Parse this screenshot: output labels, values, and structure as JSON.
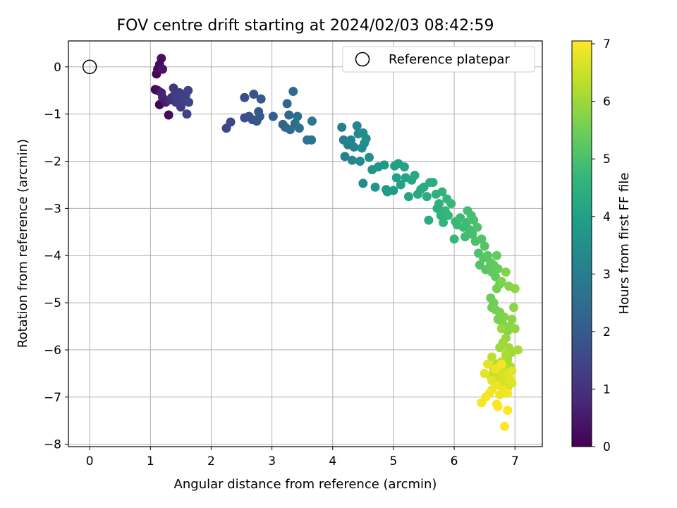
{
  "chart_data": {
    "type": "scatter",
    "title": "FOV centre drift starting at 2024/02/03 08:42:59",
    "xlabel": "Angular distance from reference (arcmin)",
    "ylabel": "Rotation from reference (arcmin)",
    "xlim": [
      -0.35,
      7.45
    ],
    "ylim": [
      -8.05,
      0.55
    ],
    "xticks": [
      0,
      1,
      2,
      3,
      4,
      5,
      6,
      7
    ],
    "yticks": [
      0,
      -1,
      -2,
      -3,
      -4,
      -5,
      -6,
      -7,
      -8
    ],
    "xtick_labels": [
      "0",
      "1",
      "2",
      "3",
      "4",
      "5",
      "6",
      "7"
    ],
    "ytick_labels": [
      "0",
      "−1",
      "−2",
      "−3",
      "−4",
      "−5",
      "−6",
      "−7",
      "−8"
    ],
    "grid": true,
    "legend": {
      "position": "top-right",
      "label": "Reference platepar"
    },
    "reference_point": {
      "x": 0,
      "y": 0
    },
    "colorbar": {
      "label": "Hours from first FF file",
      "colormap": "viridis",
      "range": [
        0,
        7.05
      ],
      "ticks": [
        0,
        1,
        2,
        3,
        4,
        5,
        6,
        7
      ],
      "tick_labels": [
        "0",
        "1",
        "2",
        "3",
        "4",
        "5",
        "6",
        "7"
      ]
    },
    "series": [
      {
        "points": [
          {
            "x": 1.1,
            "y": -0.15,
            "c": 0.05
          },
          {
            "x": 1.12,
            "y": -0.05,
            "c": 0.1
          },
          {
            "x": 1.18,
            "y": 0.18,
            "c": 0.3
          },
          {
            "x": 1.15,
            "y": 0.05,
            "c": 0.2
          },
          {
            "x": 1.2,
            "y": -0.05,
            "c": 0.4
          },
          {
            "x": 1.08,
            "y": -0.48,
            "c": 0.15
          },
          {
            "x": 1.12,
            "y": -0.5,
            "c": 0.25
          },
          {
            "x": 1.15,
            "y": -0.8,
            "c": 0.1
          },
          {
            "x": 1.18,
            "y": -0.55,
            "c": 0.6
          },
          {
            "x": 1.2,
            "y": -0.65,
            "c": 0.7
          },
          {
            "x": 1.25,
            "y": -0.75,
            "c": 0.6
          },
          {
            "x": 1.3,
            "y": -1.02,
            "c": 0.2
          },
          {
            "x": 1.32,
            "y": -0.7,
            "c": 0.9
          },
          {
            "x": 1.35,
            "y": -0.65,
            "c": 1.0
          },
          {
            "x": 1.38,
            "y": -0.45,
            "c": 1.1
          },
          {
            "x": 1.4,
            "y": -0.6,
            "c": 1.2
          },
          {
            "x": 1.42,
            "y": -0.75,
            "c": 1.15
          },
          {
            "x": 1.45,
            "y": -0.7,
            "c": 1.3
          },
          {
            "x": 1.48,
            "y": -0.55,
            "c": 1.25
          },
          {
            "x": 1.5,
            "y": -0.85,
            "c": 1.2
          },
          {
            "x": 1.52,
            "y": -0.65,
            "c": 1.3
          },
          {
            "x": 1.55,
            "y": -0.72,
            "c": 1.4
          },
          {
            "x": 1.58,
            "y": -0.6,
            "c": 1.35
          },
          {
            "x": 1.6,
            "y": -1.0,
            "c": 1.4
          },
          {
            "x": 1.62,
            "y": -0.5,
            "c": 1.4
          },
          {
            "x": 1.63,
            "y": -0.75,
            "c": 1.45
          },
          {
            "x": 2.25,
            "y": -1.3,
            "c": 1.5
          },
          {
            "x": 2.32,
            "y": -1.17,
            "c": 1.55
          },
          {
            "x": 2.55,
            "y": -0.65,
            "c": 1.7
          },
          {
            "x": 2.55,
            "y": -1.08,
            "c": 1.65
          },
          {
            "x": 2.62,
            "y": -1.05,
            "c": 1.75
          },
          {
            "x": 2.68,
            "y": -1.12,
            "c": 1.8
          },
          {
            "x": 2.7,
            "y": -0.58,
            "c": 1.85
          },
          {
            "x": 2.75,
            "y": -1.15,
            "c": 1.9
          },
          {
            "x": 2.78,
            "y": -0.95,
            "c": 1.95
          },
          {
            "x": 2.8,
            "y": -1.05,
            "c": 2.0
          },
          {
            "x": 2.82,
            "y": -0.68,
            "c": 2.0
          },
          {
            "x": 3.02,
            "y": -1.05,
            "c": 2.1
          },
          {
            "x": 3.18,
            "y": -1.22,
            "c": 2.2
          },
          {
            "x": 3.22,
            "y": -1.28,
            "c": 2.25
          },
          {
            "x": 3.25,
            "y": -0.78,
            "c": 2.3
          },
          {
            "x": 3.28,
            "y": -1.02,
            "c": 2.35
          },
          {
            "x": 3.3,
            "y": -1.33,
            "c": 2.4
          },
          {
            "x": 3.35,
            "y": -0.52,
            "c": 2.45
          },
          {
            "x": 3.38,
            "y": -1.2,
            "c": 2.5
          },
          {
            "x": 3.42,
            "y": -1.05,
            "c": 2.55
          },
          {
            "x": 3.45,
            "y": -1.3,
            "c": 2.6
          },
          {
            "x": 3.58,
            "y": -1.55,
            "c": 2.7
          },
          {
            "x": 3.65,
            "y": -1.55,
            "c": 2.75
          },
          {
            "x": 3.66,
            "y": -1.15,
            "c": 2.8
          },
          {
            "x": 4.15,
            "y": -1.28,
            "c": 3.0
          },
          {
            "x": 4.18,
            "y": -1.55,
            "c": 3.05
          },
          {
            "x": 4.2,
            "y": -1.9,
            "c": 3.1
          },
          {
            "x": 4.25,
            "y": -1.65,
            "c": 3.1
          },
          {
            "x": 4.3,
            "y": -1.55,
            "c": 3.15
          },
          {
            "x": 4.32,
            "y": -1.98,
            "c": 3.2
          },
          {
            "x": 4.35,
            "y": -1.7,
            "c": 3.2
          },
          {
            "x": 4.4,
            "y": -1.25,
            "c": 3.25
          },
          {
            "x": 4.42,
            "y": -1.42,
            "c": 3.3
          },
          {
            "x": 4.45,
            "y": -2.0,
            "c": 3.35
          },
          {
            "x": 4.48,
            "y": -1.72,
            "c": 3.4
          },
          {
            "x": 4.5,
            "y": -1.4,
            "c": 3.4
          },
          {
            "x": 4.52,
            "y": -1.62,
            "c": 3.45
          },
          {
            "x": 4.55,
            "y": -1.52,
            "c": 3.5
          },
          {
            "x": 4.6,
            "y": -1.92,
            "c": 3.5
          },
          {
            "x": 4.5,
            "y": -2.47,
            "c": 3.4
          },
          {
            "x": 4.65,
            "y": -2.18,
            "c": 3.6
          },
          {
            "x": 4.7,
            "y": -2.55,
            "c": 3.65
          },
          {
            "x": 4.75,
            "y": -2.12,
            "c": 3.7
          },
          {
            "x": 4.85,
            "y": -2.08,
            "c": 3.75
          },
          {
            "x": 4.88,
            "y": -2.6,
            "c": 3.8
          },
          {
            "x": 4.9,
            "y": -2.65,
            "c": 3.85
          },
          {
            "x": 5.0,
            "y": -2.62,
            "c": 3.9
          },
          {
            "x": 5.02,
            "y": -2.1,
            "c": 3.95
          },
          {
            "x": 5.05,
            "y": -2.35,
            "c": 4.0
          },
          {
            "x": 5.08,
            "y": -2.05,
            "c": 4.0
          },
          {
            "x": 5.12,
            "y": -2.5,
            "c": 4.05
          },
          {
            "x": 5.18,
            "y": -2.12,
            "c": 4.1
          },
          {
            "x": 5.2,
            "y": -2.35,
            "c": 4.1
          },
          {
            "x": 5.25,
            "y": -2.75,
            "c": 4.15
          },
          {
            "x": 5.3,
            "y": -2.4,
            "c": 4.2
          },
          {
            "x": 5.35,
            "y": -2.3,
            "c": 4.2
          },
          {
            "x": 5.4,
            "y": -2.7,
            "c": 4.25
          },
          {
            "x": 5.45,
            "y": -2.6,
            "c": 4.3
          },
          {
            "x": 5.5,
            "y": -2.55,
            "c": 4.3
          },
          {
            "x": 5.55,
            "y": -2.75,
            "c": 4.35
          },
          {
            "x": 5.58,
            "y": -3.25,
            "c": 4.35
          },
          {
            "x": 5.6,
            "y": -2.45,
            "c": 4.4
          },
          {
            "x": 5.65,
            "y": -2.45,
            "c": 4.4
          },
          {
            "x": 5.7,
            "y": -2.7,
            "c": 4.45
          },
          {
            "x": 5.72,
            "y": -3.0,
            "c": 4.5
          },
          {
            "x": 5.75,
            "y": -2.9,
            "c": 4.5
          },
          {
            "x": 5.78,
            "y": -3.15,
            "c": 4.55
          },
          {
            "x": 5.8,
            "y": -2.65,
            "c": 4.55
          },
          {
            "x": 5.82,
            "y": -3.3,
            "c": 4.6
          },
          {
            "x": 5.85,
            "y": -3.05,
            "c": 4.6
          },
          {
            "x": 5.88,
            "y": -2.8,
            "c": 4.65
          },
          {
            "x": 5.9,
            "y": -3.15,
            "c": 4.65
          },
          {
            "x": 5.95,
            "y": -2.9,
            "c": 4.7
          },
          {
            "x": 6.0,
            "y": -3.65,
            "c": 4.7
          },
          {
            "x": 6.02,
            "y": -3.28,
            "c": 4.75
          },
          {
            "x": 6.05,
            "y": -3.35,
            "c": 4.75
          },
          {
            "x": 6.1,
            "y": -3.2,
            "c": 4.8
          },
          {
            "x": 6.15,
            "y": -3.4,
            "c": 4.8
          },
          {
            "x": 6.18,
            "y": -3.6,
            "c": 4.85
          },
          {
            "x": 6.2,
            "y": -3.3,
            "c": 4.85
          },
          {
            "x": 6.22,
            "y": -3.05,
            "c": 4.9
          },
          {
            "x": 6.25,
            "y": -3.45,
            "c": 4.9
          },
          {
            "x": 6.28,
            "y": -3.15,
            "c": 4.95
          },
          {
            "x": 6.3,
            "y": -3.55,
            "c": 4.95
          },
          {
            "x": 6.32,
            "y": -3.25,
            "c": 5.0
          },
          {
            "x": 6.35,
            "y": -3.7,
            "c": 5.0
          },
          {
            "x": 6.38,
            "y": -3.4,
            "c": 5.05
          },
          {
            "x": 6.4,
            "y": -3.95,
            "c": 5.05
          },
          {
            "x": 6.42,
            "y": -4.2,
            "c": 5.1
          },
          {
            "x": 6.45,
            "y": -3.65,
            "c": 5.1
          },
          {
            "x": 6.48,
            "y": -4.05,
            "c": 5.15
          },
          {
            "x": 6.5,
            "y": -3.8,
            "c": 5.15
          },
          {
            "x": 6.52,
            "y": -4.3,
            "c": 5.2
          },
          {
            "x": 6.55,
            "y": -4.0,
            "c": 5.2
          },
          {
            "x": 6.58,
            "y": -4.25,
            "c": 5.25
          },
          {
            "x": 6.6,
            "y": -4.15,
            "c": 5.25
          },
          {
            "x": 6.62,
            "y": -4.35,
            "c": 5.3
          },
          {
            "x": 6.65,
            "y": -4.2,
            "c": 5.3
          },
          {
            "x": 6.68,
            "y": -4.45,
            "c": 5.35
          },
          {
            "x": 6.7,
            "y": -4.0,
            "c": 5.35
          },
          {
            "x": 6.72,
            "y": -4.28,
            "c": 5.4
          },
          {
            "x": 6.75,
            "y": -4.6,
            "c": 5.4
          },
          {
            "x": 6.6,
            "y": -4.9,
            "c": 5.45
          },
          {
            "x": 6.62,
            "y": -5.1,
            "c": 5.5
          },
          {
            "x": 6.65,
            "y": -5.0,
            "c": 5.5
          },
          {
            "x": 6.68,
            "y": -5.15,
            "c": 5.55
          },
          {
            "x": 6.7,
            "y": -4.7,
            "c": 5.55
          },
          {
            "x": 6.72,
            "y": -5.35,
            "c": 5.6
          },
          {
            "x": 6.75,
            "y": -5.2,
            "c": 5.6
          },
          {
            "x": 6.78,
            "y": -4.55,
            "c": 5.65
          },
          {
            "x": 6.8,
            "y": -5.45,
            "c": 5.65
          },
          {
            "x": 6.82,
            "y": -5.3,
            "c": 5.7
          },
          {
            "x": 6.85,
            "y": -4.35,
            "c": 5.7
          },
          {
            "x": 6.88,
            "y": -5.6,
            "c": 5.75
          },
          {
            "x": 6.9,
            "y": -4.65,
            "c": 5.75
          },
          {
            "x": 6.92,
            "y": -5.5,
            "c": 5.8
          },
          {
            "x": 6.95,
            "y": -5.35,
            "c": 5.8
          },
          {
            "x": 6.98,
            "y": -5.1,
            "c": 5.85
          },
          {
            "x": 7.0,
            "y": -4.7,
            "c": 5.85
          },
          {
            "x": 7.0,
            "y": -5.55,
            "c": 5.9
          },
          {
            "x": 6.85,
            "y": -5.75,
            "c": 5.9
          },
          {
            "x": 6.78,
            "y": -5.55,
            "c": 5.95
          },
          {
            "x": 6.8,
            "y": -5.85,
            "c": 6.0
          },
          {
            "x": 6.75,
            "y": -5.95,
            "c": 6.0
          },
          {
            "x": 6.9,
            "y": -5.95,
            "c": 6.05
          },
          {
            "x": 6.95,
            "y": -6.05,
            "c": 6.05
          },
          {
            "x": 7.05,
            "y": -6.0,
            "c": 6.1
          },
          {
            "x": 6.88,
            "y": -6.2,
            "c": 6.1
          },
          {
            "x": 6.92,
            "y": -6.35,
            "c": 6.15
          },
          {
            "x": 6.85,
            "y": -6.1,
            "c": 6.15
          },
          {
            "x": 6.82,
            "y": -6.4,
            "c": 6.2
          },
          {
            "x": 6.78,
            "y": -6.25,
            "c": 6.25
          },
          {
            "x": 6.7,
            "y": -6.3,
            "c": 6.3
          },
          {
            "x": 6.62,
            "y": -6.15,
            "c": 6.35
          },
          {
            "x": 6.65,
            "y": -6.4,
            "c": 6.4
          },
          {
            "x": 6.6,
            "y": -6.55,
            "c": 6.45
          },
          {
            "x": 6.68,
            "y": -6.6,
            "c": 6.5
          },
          {
            "x": 6.72,
            "y": -6.5,
            "c": 6.5
          },
          {
            "x": 6.75,
            "y": -6.7,
            "c": 6.55
          },
          {
            "x": 6.78,
            "y": -6.55,
            "c": 6.6
          },
          {
            "x": 6.8,
            "y": -6.45,
            "c": 6.6
          },
          {
            "x": 6.85,
            "y": -6.65,
            "c": 6.65
          },
          {
            "x": 6.88,
            "y": -6.8,
            "c": 6.65
          },
          {
            "x": 6.9,
            "y": -6.5,
            "c": 6.7
          },
          {
            "x": 6.95,
            "y": -6.7,
            "c": 6.7
          },
          {
            "x": 6.95,
            "y": -6.45,
            "c": 6.75
          },
          {
            "x": 6.92,
            "y": -6.62,
            "c": 6.75
          },
          {
            "x": 6.55,
            "y": -6.3,
            "c": 6.8
          },
          {
            "x": 6.5,
            "y": -6.5,
            "c": 6.8
          },
          {
            "x": 6.62,
            "y": -6.85,
            "c": 6.85
          },
          {
            "x": 6.7,
            "y": -6.75,
            "c": 6.85
          },
          {
            "x": 6.75,
            "y": -6.95,
            "c": 6.9
          },
          {
            "x": 6.8,
            "y": -6.85,
            "c": 6.9
          },
          {
            "x": 6.68,
            "y": -6.4,
            "c": 6.9
          },
          {
            "x": 6.88,
            "y": -6.92,
            "c": 6.95
          },
          {
            "x": 6.58,
            "y": -6.92,
            "c": 6.95
          },
          {
            "x": 6.52,
            "y": -7.0,
            "c": 7.0
          },
          {
            "x": 6.45,
            "y": -7.12,
            "c": 7.0
          },
          {
            "x": 6.7,
            "y": -7.15,
            "c": 7.0
          },
          {
            "x": 6.72,
            "y": -7.2,
            "c": 7.02
          },
          {
            "x": 6.88,
            "y": -7.28,
            "c": 7.03
          },
          {
            "x": 6.83,
            "y": -7.62,
            "c": 7.05
          },
          {
            "x": 6.78,
            "y": -6.3,
            "c": 6.95
          },
          {
            "x": 6.62,
            "y": -6.65,
            "c": 6.8
          }
        ]
      }
    ]
  }
}
